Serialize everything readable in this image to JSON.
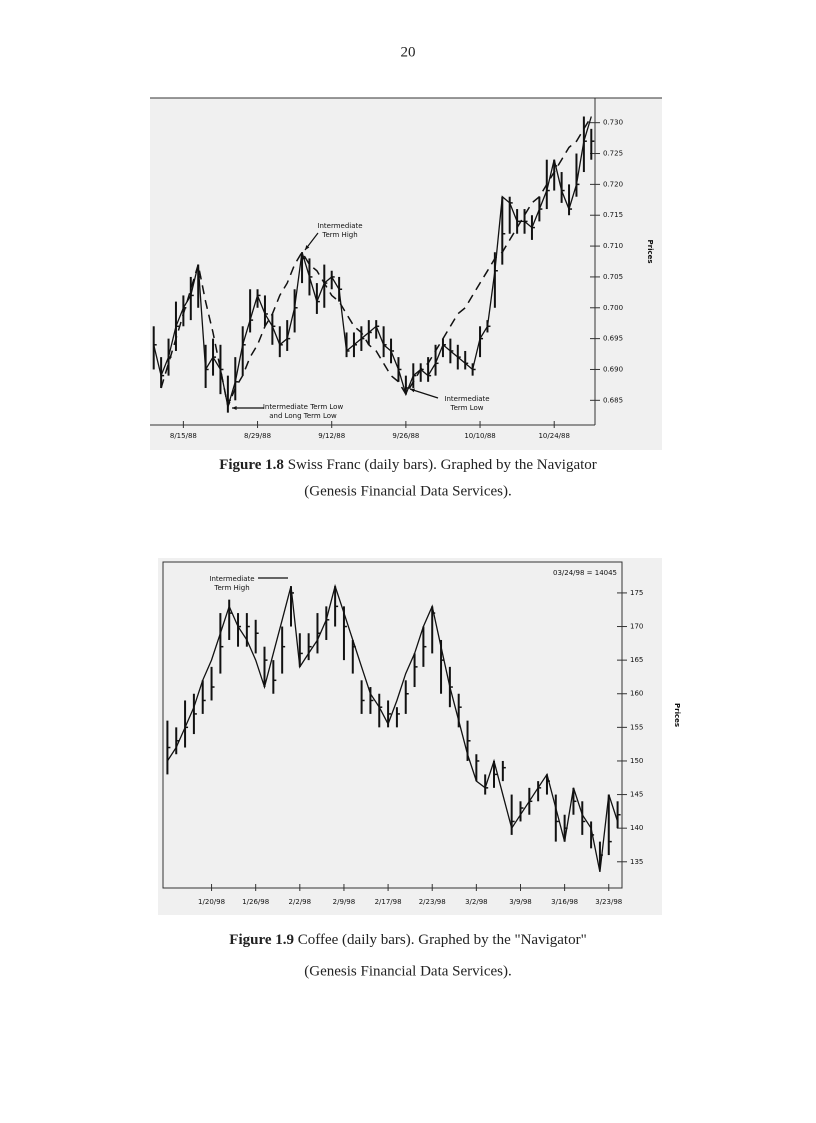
{
  "page_number": "20",
  "captions": [
    {
      "label": "Figure 1.8",
      "lines": [
        "Swiss Franc (daily bars). Graphed by the Navigator",
        "(Genesis Financial Data Services)."
      ]
    },
    {
      "label": "Figure 1.9",
      "lines": [
        "Coffee (daily bars). Graphed by the \"Navigator\"",
        "(Genesis Financial Data Services)."
      ]
    }
  ],
  "chart_data": [
    {
      "type": "hlc",
      "y_label": "Prices",
      "color": "#111",
      "categories": [
        null,
        null,
        null,
        null,
        "8/15/88",
        null,
        null,
        null,
        null,
        null,
        null,
        null,
        null,
        null,
        "8/29/88",
        null,
        null,
        null,
        null,
        null,
        null,
        null,
        null,
        null,
        "9/12/88",
        null,
        null,
        null,
        null,
        null,
        null,
        null,
        null,
        null,
        "9/26/88",
        null,
        null,
        null,
        null,
        null,
        null,
        null,
        null,
        null,
        "10/10/88",
        null,
        null,
        null,
        null,
        null,
        null,
        null,
        null,
        null,
        "10/24/88",
        null,
        null,
        null,
        null,
        null
      ],
      "high": [
        0.697,
        0.692,
        0.695,
        0.701,
        0.702,
        0.705,
        0.707,
        0.694,
        0.695,
        0.694,
        0.689,
        0.692,
        0.697,
        0.703,
        0.703,
        0.702,
        0.699,
        0.697,
        0.698,
        0.703,
        0.709,
        0.708,
        0.704,
        0.707,
        0.706,
        0.705,
        0.696,
        0.696,
        0.697,
        0.698,
        0.698,
        0.697,
        0.695,
        0.692,
        0.689,
        0.691,
        0.691,
        0.692,
        0.694,
        0.695,
        0.695,
        0.694,
        0.693,
        0.691,
        0.697,
        0.698,
        0.709,
        0.718,
        0.718,
        0.716,
        0.716,
        0.715,
        0.718,
        0.724,
        0.724,
        0.722,
        0.72,
        0.725,
        0.731,
        0.729
      ],
      "low": [
        0.69,
        0.687,
        0.689,
        0.693,
        0.697,
        0.698,
        0.7,
        0.687,
        0.689,
        0.686,
        0.683,
        0.685,
        0.689,
        0.696,
        0.7,
        0.697,
        0.694,
        0.692,
        0.693,
        0.696,
        0.704,
        0.702,
        0.699,
        0.7,
        0.703,
        0.701,
        0.692,
        0.692,
        0.693,
        0.694,
        0.695,
        0.692,
        0.691,
        0.688,
        0.686,
        0.687,
        0.688,
        0.688,
        0.689,
        0.692,
        0.691,
        0.69,
        0.69,
        0.689,
        0.692,
        0.696,
        0.7,
        0.707,
        0.712,
        0.712,
        0.712,
        0.711,
        0.714,
        0.716,
        0.719,
        0.717,
        0.715,
        0.718,
        0.722,
        0.724
      ],
      "close": [
        0.694,
        0.689,
        0.692,
        0.697,
        0.7,
        0.702,
        0.705,
        0.69,
        0.692,
        0.69,
        0.685,
        0.688,
        0.694,
        0.698,
        0.702,
        0.699,
        0.697,
        0.694,
        0.695,
        0.7,
        0.708,
        0.705,
        0.701,
        0.704,
        0.705,
        0.703,
        0.693,
        0.694,
        0.695,
        0.696,
        0.697,
        0.694,
        0.693,
        0.69,
        0.687,
        0.689,
        0.69,
        0.689,
        0.691,
        0.694,
        0.693,
        0.692,
        0.691,
        0.69,
        0.695,
        0.697,
        0.706,
        0.712,
        0.717,
        0.714,
        0.714,
        0.713,
        0.716,
        0.719,
        0.723,
        0.719,
        0.716,
        0.72,
        0.727,
        0.727
      ],
      "lines": [
        {
          "style": "solid",
          "values": [
            0.694,
            0.689,
            0.692,
            0.697,
            0.7,
            0.702,
            0.707,
            0.69,
            0.692,
            0.69,
            0.684,
            0.688,
            0.694,
            0.698,
            0.702,
            0.699,
            0.697,
            0.694,
            0.695,
            0.7,
            0.709,
            0.705,
            0.701,
            0.704,
            0.705,
            0.703,
            0.693,
            0.694,
            0.695,
            0.696,
            0.697,
            0.694,
            0.693,
            0.69,
            0.686,
            0.689,
            0.69,
            0.689,
            0.691,
            0.694,
            0.693,
            0.692,
            0.691,
            0.69,
            0.695,
            0.697,
            0.706,
            0.718,
            0.717,
            0.714,
            0.714,
            0.713,
            0.716,
            0.719,
            0.724,
            0.719,
            0.716,
            0.72,
            0.727,
            0.731
          ]
        },
        {
          "style": "dashed",
          "values": [
            null,
            0.687,
            0.691,
            0.695,
            0.699,
            0.703,
            0.707,
            0.701,
            0.696,
            0.69,
            0.684,
            0.687,
            0.689,
            0.692,
            0.694,
            0.697,
            0.699,
            0.702,
            0.704,
            0.707,
            0.709,
            0.707,
            0.706,
            0.704,
            0.702,
            0.701,
            0.699,
            0.697,
            0.696,
            0.694,
            0.693,
            0.691,
            0.689,
            0.688,
            0.686,
            0.688,
            0.69,
            0.691,
            0.693,
            0.695,
            0.697,
            0.699,
            0.7,
            0.702,
            0.704,
            0.706,
            0.708,
            0.709,
            0.711,
            0.713,
            0.715,
            0.717,
            0.718,
            0.72,
            0.722,
            0.724,
            0.726,
            0.727,
            0.729,
            0.731
          ]
        }
      ],
      "annotations": [
        {
          "lines": [
            "Intermediate",
            "Term High"
          ]
        },
        {
          "lines": [
            "Intermediate Term Low",
            "and Long Term Low"
          ]
        },
        {
          "lines": [
            "Intermediate",
            "Term Low"
          ]
        }
      ],
      "ylim": [
        0.681,
        0.734
      ],
      "yticks": [
        {
          "value": 0.685,
          "label": "0.685"
        },
        {
          "value": 0.69,
          "label": "0.690"
        },
        0.695,
        {
          "value": 0.7,
          "label": "0.700"
        },
        0.705,
        {
          "value": 0.71,
          "label": "0.710"
        },
        0.715,
        {
          "value": 0.72,
          "label": "0.720"
        },
        0.725,
        {
          "value": 0.73,
          "label": "0.730"
        }
      ]
    },
    {
      "type": "hlc",
      "y_label": "Prices",
      "color": "#111",
      "header": "03/24/98 = 14045",
      "categories": [
        null,
        null,
        null,
        null,
        null,
        "1/20/98",
        null,
        null,
        null,
        null,
        "1/26/98",
        null,
        null,
        null,
        null,
        "2/2/98",
        null,
        null,
        null,
        null,
        "2/9/98",
        null,
        null,
        null,
        null,
        "2/17/98",
        null,
        null,
        null,
        null,
        "2/23/98",
        null,
        null,
        null,
        null,
        "3/2/98",
        null,
        null,
        null,
        null,
        "3/9/98",
        null,
        null,
        null,
        null,
        "3/16/98",
        null,
        null,
        null,
        null,
        "3/23/98",
        null
      ],
      "high": [
        156,
        155,
        159,
        160,
        162,
        164,
        172,
        174,
        172,
        172,
        171,
        167,
        165,
        170,
        176,
        169,
        169,
        172,
        173,
        176,
        173,
        168,
        162,
        161,
        160,
        159,
        158,
        162,
        166,
        170,
        173,
        168,
        164,
        160,
        156,
        151,
        148,
        150,
        150,
        145,
        144,
        146,
        147,
        148,
        145,
        142,
        146,
        144,
        141,
        138,
        145,
        144
      ],
      "low": [
        148,
        151,
        152,
        154,
        157,
        159,
        163,
        168,
        167,
        167,
        166,
        161,
        160,
        163,
        170,
        164,
        165,
        166,
        168,
        170,
        165,
        163,
        157,
        157,
        155,
        155,
        155,
        157,
        161,
        164,
        166,
        160,
        158,
        155,
        150,
        147,
        145,
        146,
        147,
        139,
        141,
        142,
        144,
        145,
        138,
        138,
        142,
        139,
        137,
        134,
        136,
        140
      ],
      "close": [
        152,
        153,
        155,
        157,
        159,
        161,
        167,
        172,
        170,
        170,
        169,
        165,
        162,
        167,
        175,
        166,
        167,
        169,
        171,
        173,
        170,
        167,
        159,
        159,
        158,
        157,
        157,
        160,
        164,
        167,
        172,
        165,
        161,
        158,
        153,
        150,
        146,
        148,
        149,
        141,
        143,
        144,
        146,
        147,
        141,
        140,
        144,
        141,
        139,
        136,
        138,
        142
      ],
      "lines": [
        {
          "style": "solid",
          "values": [
            150,
            152,
            155,
            158,
            162,
            165,
            169,
            173,
            170,
            168,
            165,
            161,
            166,
            171,
            176,
            164,
            166,
            168,
            171,
            176,
            172,
            168,
            164,
            160,
            158,
            155.5,
            159,
            163,
            166,
            170,
            173,
            167,
            161,
            156,
            151,
            147,
            146,
            150,
            145,
            140,
            142,
            144,
            146,
            148,
            143,
            138,
            146,
            142,
            140,
            133.5,
            145,
            141
          ]
        }
      ],
      "annotations": [
        {
          "lines": [
            "Intermediate",
            "Term High"
          ]
        }
      ],
      "ylim": [
        131.1,
        179.6
      ],
      "yticks": [
        135,
        140,
        145,
        150,
        155,
        160,
        165,
        170,
        175
      ]
    }
  ]
}
